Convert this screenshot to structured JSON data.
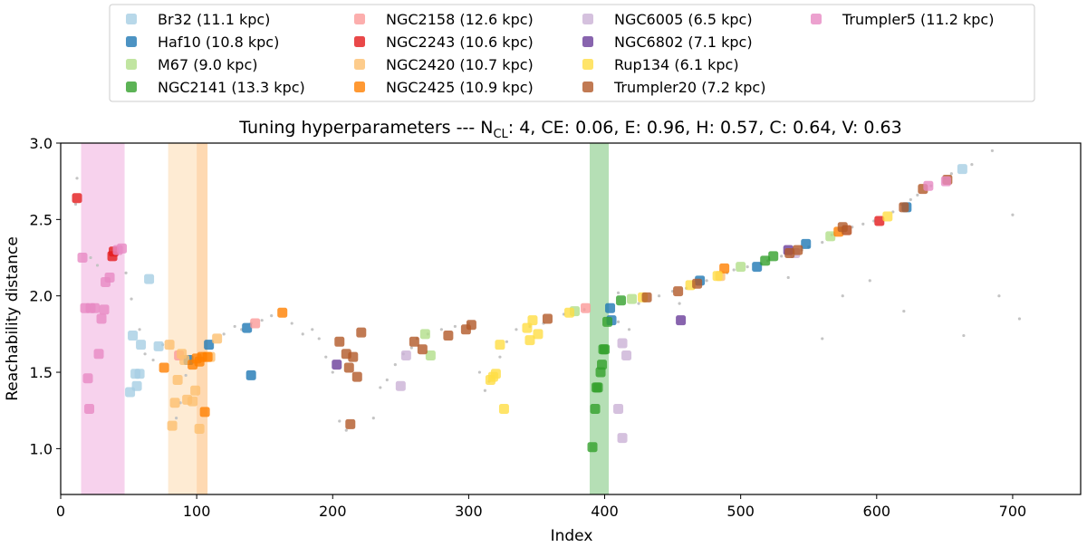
{
  "chart_data": {
    "type": "scatter",
    "title_prefix": "Tuning hyperparameters --- N",
    "title_sub": "CL",
    "title_suffix": ": 4, CE: 0.06, E: 0.96, H: 0.57, C: 0.64, V: 0.63",
    "xlabel": "Index",
    "ylabel": "Reachability distance",
    "xlim": [
      0,
      750
    ],
    "ylim": [
      0.7,
      3.0
    ],
    "x_ticks": [
      0,
      100,
      200,
      300,
      400,
      500,
      600,
      700
    ],
    "y_ticks": [
      1.0,
      1.5,
      2.0,
      2.5,
      3.0
    ],
    "y_tick_labels": [
      "1.0",
      "1.5",
      "2.0",
      "2.5",
      "3.0"
    ],
    "legend_placement": "above",
    "highlight_bands": [
      {
        "x": [
          15,
          47
        ],
        "color": "#f0a6dc"
      },
      {
        "x": [
          79,
          100
        ],
        "color": "#fdd8a8"
      },
      {
        "x": [
          100,
          108
        ],
        "color": "#fdb466"
      },
      {
        "x": [
          389,
          403
        ],
        "color": "#6cbf6c"
      }
    ],
    "background_series": {
      "color": "#c4c4c4",
      "points": [
        [
          12,
          2.77
        ],
        [
          11,
          2.6
        ],
        [
          22,
          2.25
        ],
        [
          27,
          2.2
        ],
        [
          48,
          2.15
        ],
        [
          52,
          1.98
        ],
        [
          58,
          1.78
        ],
        [
          62,
          1.62
        ],
        [
          68,
          1.58
        ],
        [
          75,
          1.68
        ],
        [
          85,
          1.2
        ],
        [
          88,
          1.3
        ],
        [
          92,
          1.48
        ],
        [
          120,
          1.75
        ],
        [
          128,
          1.8
        ],
        [
          133,
          1.78
        ],
        [
          140,
          1.82
        ],
        [
          148,
          1.84
        ],
        [
          155,
          1.87
        ],
        [
          170,
          1.82
        ],
        [
          178,
          1.75
        ],
        [
          185,
          1.78
        ],
        [
          190,
          1.72
        ],
        [
          195,
          1.6
        ],
        [
          200,
          1.5
        ],
        [
          205,
          1.18
        ],
        [
          210,
          1.12
        ],
        [
          230,
          1.2
        ],
        [
          235,
          1.4
        ],
        [
          240,
          1.45
        ],
        [
          246,
          1.55
        ],
        [
          252,
          1.62
        ],
        [
          258,
          1.66
        ],
        [
          262,
          1.72
        ],
        [
          270,
          1.75
        ],
        [
          280,
          1.78
        ],
        [
          290,
          1.8
        ],
        [
          300,
          1.82
        ],
        [
          308,
          1.5
        ],
        [
          312,
          1.38
        ],
        [
          315,
          1.44
        ],
        [
          323,
          1.6
        ],
        [
          328,
          1.7
        ],
        [
          335,
          1.78
        ],
        [
          345,
          1.8
        ],
        [
          355,
          1.82
        ],
        [
          370,
          1.88
        ],
        [
          385,
          1.91
        ],
        [
          410,
          1.83
        ],
        [
          418,
          1.78
        ],
        [
          425,
          1.95
        ],
        [
          440,
          2.0
        ],
        [
          450,
          2.03
        ],
        [
          460,
          2.05
        ],
        [
          475,
          2.1
        ],
        [
          490,
          2.15
        ],
        [
          495,
          2.17
        ],
        [
          505,
          2.19
        ],
        [
          515,
          2.21
        ],
        [
          520,
          2.23
        ],
        [
          530,
          2.26
        ],
        [
          545,
          2.3
        ],
        [
          550,
          2.32
        ],
        [
          560,
          2.35
        ],
        [
          567,
          2.4
        ],
        [
          575,
          2.0
        ],
        [
          582,
          2.45
        ],
        [
          590,
          2.47
        ],
        [
          595,
          2.1
        ],
        [
          598,
          2.49
        ],
        [
          612,
          2.55
        ],
        [
          618,
          2.6
        ],
        [
          625,
          2.63
        ],
        [
          630,
          2.66
        ],
        [
          640,
          2.72
        ],
        [
          650,
          2.77
        ],
        [
          655,
          2.8
        ],
        [
          670,
          2.86
        ],
        [
          685,
          2.95
        ],
        [
          690,
          2.0
        ],
        [
          700,
          2.53
        ],
        [
          705,
          1.85
        ],
        [
          560,
          1.72
        ],
        [
          410,
          2.02
        ],
        [
          455,
          1.95
        ],
        [
          535,
          2.12
        ],
        [
          620,
          1.9
        ],
        [
          664,
          1.74
        ]
      ]
    },
    "series": [
      {
        "name": "Br32 (11.1 kpc)",
        "color": "#a6cee3",
        "points": [
          [
            51,
            1.37
          ],
          [
            53,
            1.74
          ],
          [
            55,
            1.49
          ],
          [
            56,
            1.41
          ],
          [
            58,
            1.49
          ],
          [
            59,
            1.68
          ],
          [
            65,
            2.11
          ],
          [
            72,
            1.67
          ],
          [
            663,
            2.83
          ]
        ]
      },
      {
        "name": "Haf10 (10.8 kpc)",
        "color": "#1f78b4",
        "points": [
          [
            94,
            1.58
          ],
          [
            109,
            1.68
          ],
          [
            137,
            1.79
          ],
          [
            140,
            1.48
          ],
          [
            404,
            1.92
          ],
          [
            405,
            1.84
          ],
          [
            470,
            2.1
          ],
          [
            512,
            2.19
          ],
          [
            548,
            2.34
          ],
          [
            622,
            2.58
          ]
        ]
      },
      {
        "name": "M67 (9.0 kpc)",
        "color": "#b2df8a",
        "points": [
          [
            268,
            1.75
          ],
          [
            272,
            1.61
          ],
          [
            378,
            1.9
          ],
          [
            420,
            1.98
          ],
          [
            500,
            2.19
          ],
          [
            566,
            2.39
          ]
        ]
      },
      {
        "name": "NGC2141 (13.3 kpc)",
        "color": "#33a02c",
        "points": [
          [
            391,
            1.01
          ],
          [
            393,
            1.26
          ],
          [
            394,
            1.4
          ],
          [
            395,
            1.4
          ],
          [
            397,
            1.5
          ],
          [
            398,
            1.55
          ],
          [
            399,
            1.65
          ],
          [
            400,
            1.65
          ],
          [
            402,
            1.83
          ],
          [
            412,
            1.97
          ],
          [
            518,
            2.23
          ],
          [
            524,
            2.26
          ]
        ]
      },
      {
        "name": "NGC2158 (12.6 kpc)",
        "color": "#fb9a99",
        "points": [
          [
            143,
            1.82
          ],
          [
            87,
            1.61
          ],
          [
            386,
            1.92
          ],
          [
            578,
            2.43
          ]
        ]
      },
      {
        "name": "NGC2243 (10.6 kpc)",
        "color": "#e31a1c",
        "points": [
          [
            12,
            2.64
          ],
          [
            38,
            2.26
          ],
          [
            39,
            2.29
          ],
          [
            602,
            2.49
          ]
        ]
      },
      {
        "name": "NGC2420 (10.7 kpc)",
        "color": "#fdbf6f",
        "points": [
          [
            80,
            1.68
          ],
          [
            82,
            1.15
          ],
          [
            84,
            1.3
          ],
          [
            86,
            1.45
          ],
          [
            89,
            1.62
          ],
          [
            91,
            1.58
          ],
          [
            93,
            1.32
          ],
          [
            97,
            1.31
          ],
          [
            99,
            1.38
          ],
          [
            102,
            1.13
          ],
          [
            106,
            1.6
          ],
          [
            110,
            1.6
          ],
          [
            115,
            1.72
          ],
          [
            485,
            2.13
          ]
        ]
      },
      {
        "name": "NGC2425 (10.9 kpc)",
        "color": "#ff7f00",
        "points": [
          [
            76,
            1.53
          ],
          [
            97,
            1.55
          ],
          [
            100,
            1.59
          ],
          [
            102,
            1.57
          ],
          [
            104,
            1.6
          ],
          [
            106,
            1.24
          ],
          [
            108,
            1.6
          ],
          [
            163,
            1.89
          ],
          [
            488,
            2.18
          ],
          [
            572,
            2.42
          ]
        ]
      },
      {
        "name": "NGC6005 (6.5 kpc)",
        "color": "#cab2d6",
        "points": [
          [
            250,
            1.41
          ],
          [
            254,
            1.61
          ],
          [
            410,
            1.26
          ],
          [
            413,
            1.07
          ],
          [
            413,
            1.69
          ],
          [
            416,
            1.61
          ],
          [
            540,
            2.28
          ]
        ]
      },
      {
        "name": "NGC6802 (7.1 kpc)",
        "color": "#6a3d9a",
        "points": [
          [
            203,
            1.55
          ],
          [
            456,
            1.84
          ],
          [
            535,
            2.3
          ]
        ]
      },
      {
        "name": "Rup134 (6.1 kpc)",
        "color": "#ffdd44",
        "points": [
          [
            316,
            1.45
          ],
          [
            318,
            1.47
          ],
          [
            320,
            1.49
          ],
          [
            323,
            1.68
          ],
          [
            326,
            1.26
          ],
          [
            343,
            1.79
          ],
          [
            345,
            1.71
          ],
          [
            347,
            1.84
          ],
          [
            351,
            1.75
          ],
          [
            374,
            1.89
          ],
          [
            428,
            1.99
          ],
          [
            463,
            2.07
          ],
          [
            483,
            2.13
          ],
          [
            608,
            2.52
          ]
        ]
      },
      {
        "name": "Trumpler20 (7.2 kpc)",
        "color": "#b15928",
        "points": [
          [
            205,
            1.7
          ],
          [
            210,
            1.62
          ],
          [
            212,
            1.53
          ],
          [
            213,
            1.16
          ],
          [
            215,
            1.6
          ],
          [
            218,
            1.47
          ],
          [
            221,
            1.76
          ],
          [
            260,
            1.7
          ],
          [
            266,
            1.65
          ],
          [
            285,
            1.74
          ],
          [
            298,
            1.78
          ],
          [
            302,
            1.81
          ],
          [
            358,
            1.85
          ],
          [
            431,
            1.99
          ],
          [
            454,
            2.03
          ],
          [
            468,
            2.08
          ],
          [
            536,
            2.28
          ],
          [
            542,
            2.3
          ],
          [
            578,
            2.43
          ],
          [
            575,
            2.45
          ],
          [
            620,
            2.58
          ],
          [
            634,
            2.7
          ],
          [
            652,
            2.76
          ]
        ]
      },
      {
        "name": "Trumpler5 (11.2 kpc)",
        "color": "#e78ac3",
        "points": [
          [
            16,
            2.25
          ],
          [
            18,
            1.92
          ],
          [
            20,
            1.46
          ],
          [
            21,
            1.26
          ],
          [
            22,
            1.92
          ],
          [
            25,
            1.92
          ],
          [
            28,
            1.62
          ],
          [
            30,
            1.85
          ],
          [
            32,
            1.91
          ],
          [
            33,
            2.09
          ],
          [
            36,
            2.12
          ],
          [
            42,
            2.3
          ],
          [
            45,
            2.31
          ],
          [
            638,
            2.72
          ],
          [
            651,
            2.75
          ]
        ]
      }
    ]
  }
}
